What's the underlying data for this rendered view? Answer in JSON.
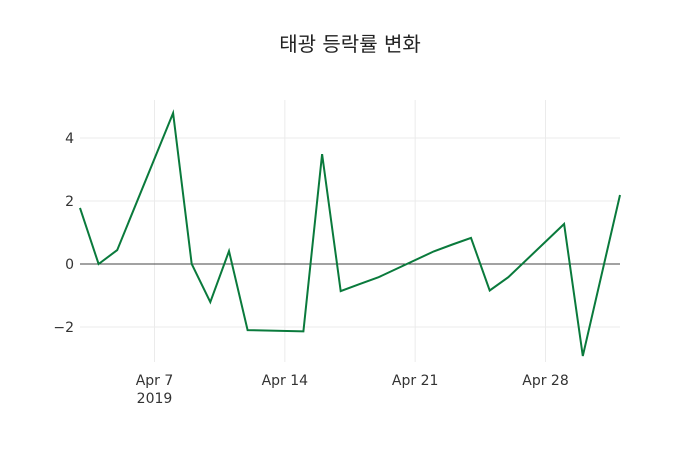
{
  "chart_data": {
    "type": "line",
    "title": "태광 등락률 변화",
    "xlabel": "",
    "ylabel": "",
    "x": [
      "2019-04-03",
      "2019-04-04",
      "2019-04-05",
      "2019-04-08",
      "2019-04-09",
      "2019-04-10",
      "2019-04-11",
      "2019-04-12",
      "2019-04-15",
      "2019-04-16",
      "2019-04-17",
      "2019-04-18",
      "2019-04-19",
      "2019-04-22",
      "2019-04-23",
      "2019-04-24",
      "2019-04-25",
      "2019-04-26",
      "2019-04-29",
      "2019-04-30",
      "2019-05-02"
    ],
    "series": [
      {
        "name": "등락률",
        "color": "#0a7a3c",
        "values": [
          1.78,
          0.0,
          0.44,
          4.79,
          0.0,
          -1.21,
          0.41,
          -2.1,
          -2.14,
          3.49,
          -0.86,
          -0.64,
          -0.43,
          0.4,
          0.62,
          0.83,
          -0.84,
          -0.42,
          1.27,
          -2.92,
          2.19
        ]
      }
    ],
    "x_ticks": [
      {
        "label": "Apr 7",
        "sublabel": "2019",
        "date": "2019-04-07"
      },
      {
        "label": "Apr 14",
        "date": "2019-04-14"
      },
      {
        "label": "Apr 21",
        "date": "2019-04-21"
      },
      {
        "label": "Apr 28",
        "date": "2019-04-28"
      }
    ],
    "y_ticks": [
      4,
      2,
      0,
      -2
    ],
    "y_tick_labels": [
      "4",
      "2",
      "0",
      "−2"
    ],
    "ylim": [
      -3.2,
      5.2
    ],
    "xlim": [
      "2019-04-03",
      "2019-05-02"
    ],
    "grid": true,
    "zero_line": true,
    "legend": "none"
  }
}
